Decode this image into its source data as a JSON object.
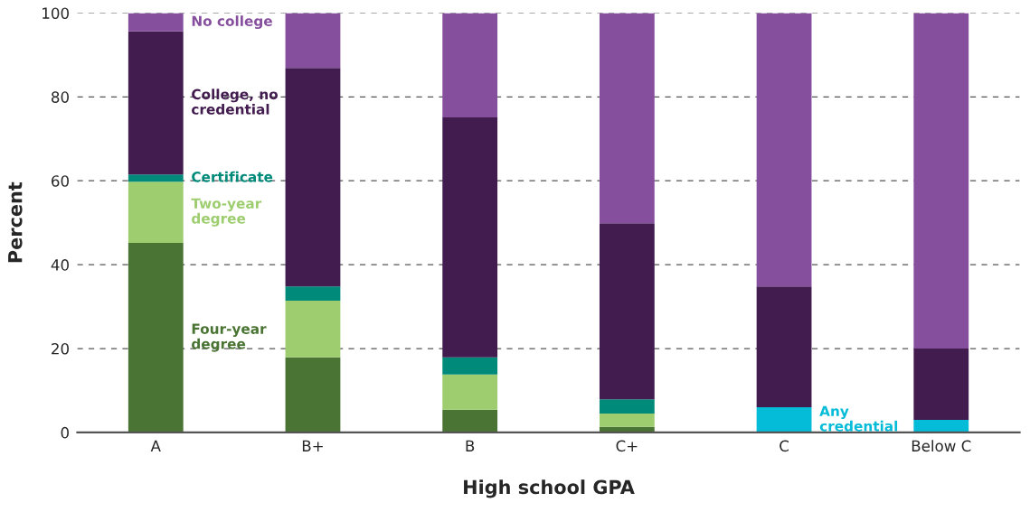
{
  "chart_data": {
    "type": "bar",
    "stacked": true,
    "xlabel": "High school GPA",
    "ylabel": "Percent",
    "categories": [
      "A",
      "B+",
      "B",
      "C+",
      "C",
      "Below C"
    ],
    "series": [
      {
        "name": "Four-year\ndegree",
        "color": "#4a7433",
        "values": [
          45.2,
          17.9,
          5.4,
          1.3,
          null,
          null
        ]
      },
      {
        "name": "Two-year\ndegree",
        "color": "#9dcd6e",
        "values": [
          14.6,
          13.5,
          8.4,
          3.2,
          null,
          null
        ]
      },
      {
        "name": "Certificate",
        "color": "#008a7a",
        "values": [
          1.7,
          3.4,
          4.1,
          3.4,
          null,
          null
        ]
      },
      {
        "name": "Any\ncredential",
        "color": "#05bcd8",
        "values": [
          null,
          null,
          null,
          null,
          6.0,
          3.0
        ]
      },
      {
        "name": "College, no\ncredential",
        "color": "#421b4f",
        "values": [
          34.1,
          52.1,
          57.2,
          42.0,
          28.8,
          17.0
        ]
      },
      {
        "name": "No college",
        "color": "#864f9e",
        "values": [
          4.4,
          13.1,
          24.9,
          50.1,
          65.2,
          80.0
        ]
      }
    ],
    "ylim": [
      0,
      100
    ],
    "yticks": [
      0,
      20,
      40,
      60,
      80,
      100
    ],
    "grid": "y",
    "legend": false
  }
}
